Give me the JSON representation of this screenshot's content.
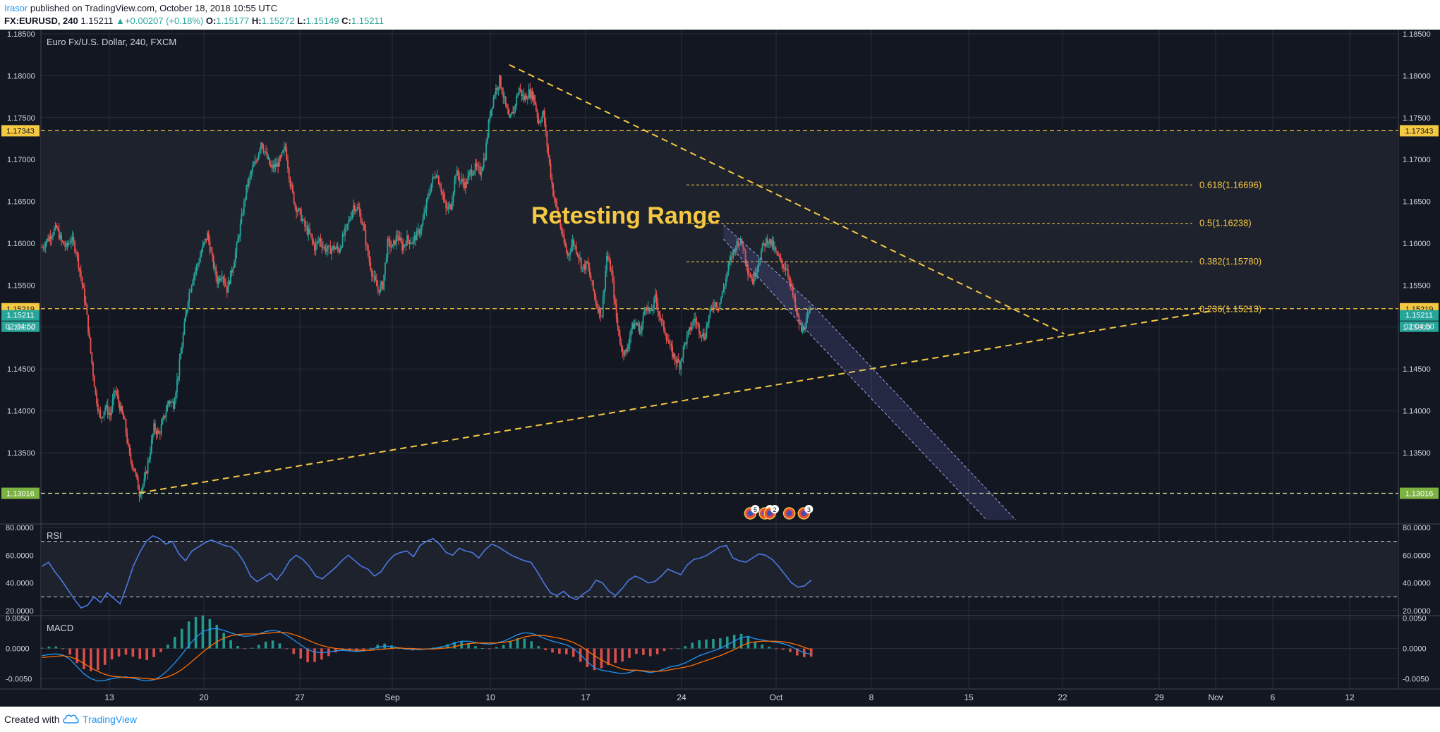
{
  "header": {
    "author": "Irasor",
    "published_text": " published on TradingView.com, October 18, 2018 10:55 UTC",
    "symbol": "FX:EURUSD, 240",
    "last": "1.15211",
    "change_arrow": "▲",
    "change": "+0.00207 (+0.18%)",
    "o_label": "O:",
    "o": "1.15177",
    "h_label": "H:",
    "h": "1.15272",
    "l_label": "L:",
    "l": "1.15149",
    "c_label": "C:",
    "c": "1.15211"
  },
  "footer": {
    "created_with": "Created with",
    "brand": "TradingView"
  },
  "chart_data": [
    {
      "type": "candlestick",
      "title": "Euro Fx/U.S. Dollar, 240, FXCM",
      "annotation": "Retesting Range",
      "ylim": [
        1.1265,
        1.1855
      ],
      "y_ticks": [
        1.185,
        1.18,
        1.175,
        1.17,
        1.165,
        1.16,
        1.155,
        1.15,
        1.145,
        1.14,
        1.135
      ],
      "y_tick_labels": [
        "1.18500",
        "1.18000",
        "1.17500",
        "1.17000",
        "1.16500",
        "1.16000",
        "1.15500",
        "1.15000",
        "1.14500",
        "1.14000",
        "1.13500"
      ],
      "x_tick_labels": [
        "13",
        "20",
        "27",
        "Sep",
        "10",
        "17",
        "24",
        "Oct",
        "8",
        "15",
        "22",
        "29",
        "Nov",
        "6",
        "12"
      ],
      "price_path": [
        [
          0,
          1.1595
        ],
        [
          2,
          1.1612
        ],
        [
          3,
          1.1618
        ],
        [
          4,
          1.1602
        ],
        [
          5,
          1.1595
        ],
        [
          6,
          1.1606
        ],
        [
          7,
          1.1592
        ],
        [
          8,
          1.156
        ],
        [
          9,
          1.1525
        ],
        [
          10,
          1.147
        ],
        [
          11,
          1.142
        ],
        [
          12,
          1.139
        ],
        [
          13,
          1.1405
        ],
        [
          14,
          1.1395
        ],
        [
          15,
          1.1425
        ],
        [
          16,
          1.1405
        ],
        [
          17,
          1.1385
        ],
        [
          18,
          1.1345
        ],
        [
          19,
          1.133
        ],
        [
          20,
          1.1302
        ],
        [
          21,
          1.1315
        ],
        [
          22,
          1.1345
        ],
        [
          23,
          1.138
        ],
        [
          24,
          1.1372
        ],
        [
          25,
          1.139
        ],
        [
          26,
          1.1412
        ],
        [
          27,
          1.1408
        ],
        [
          28,
          1.1445
        ],
        [
          29,
          1.149
        ],
        [
          30,
          1.1535
        ],
        [
          31,
          1.156
        ],
        [
          32,
          1.1575
        ],
        [
          33,
          1.1595
        ],
        [
          34,
          1.161
        ],
        [
          35,
          1.158
        ],
        [
          36,
          1.1555
        ],
        [
          37,
          1.1565
        ],
        [
          38,
          1.1545
        ],
        [
          39,
          1.1568
        ],
        [
          40,
          1.1595
        ],
        [
          41,
          1.163
        ],
        [
          42,
          1.1665
        ],
        [
          43,
          1.1685
        ],
        [
          44,
          1.1698
        ],
        [
          45,
          1.1722
        ],
        [
          46,
          1.1705
        ],
        [
          47,
          1.169
        ],
        [
          48,
          1.1692
        ],
        [
          49,
          1.17
        ],
        [
          50,
          1.1715
        ],
        [
          51,
          1.1672
        ],
        [
          52,
          1.1645
        ],
        [
          53,
          1.1635
        ],
        [
          54,
          1.162
        ],
        [
          55,
          1.161
        ],
        [
          56,
          1.1595
        ],
        [
          57,
          1.1605
        ],
        [
          58,
          1.1594
        ],
        [
          59,
          1.1592
        ],
        [
          60,
          1.1595
        ],
        [
          61,
          1.1592
        ],
        [
          62,
          1.161
        ],
        [
          63,
          1.1625
        ],
        [
          64,
          1.1645
        ],
        [
          65,
          1.164
        ],
        [
          66,
          1.162
        ],
        [
          67,
          1.1585
        ],
        [
          68,
          1.156
        ],
        [
          69,
          1.1545
        ],
        [
          70,
          1.155
        ],
        [
          71,
          1.16
        ],
        [
          72,
          1.1595
        ],
        [
          73,
          1.161
        ],
        [
          74,
          1.1595
        ],
        [
          75,
          1.1605
        ],
        [
          76,
          1.1602
        ],
        [
          77,
          1.161
        ],
        [
          78,
          1.162
        ],
        [
          79,
          1.1648
        ],
        [
          80,
          1.1672
        ],
        [
          81,
          1.1685
        ],
        [
          82,
          1.1665
        ],
        [
          83,
          1.164
        ],
        [
          84,
          1.1645
        ],
        [
          85,
          1.1685
        ],
        [
          86,
          1.1675
        ],
        [
          87,
          1.167
        ],
        [
          88,
          1.1685
        ],
        [
          89,
          1.169
        ],
        [
          90,
          1.1685
        ],
        [
          91,
          1.1705
        ],
        [
          92,
          1.1755
        ],
        [
          93,
          1.178
        ],
        [
          94,
          1.1795
        ],
        [
          95,
          1.177
        ],
        [
          96,
          1.1745
        ],
        [
          97,
          1.1762
        ],
        [
          98,
          1.1785
        ],
        [
          99,
          1.1772
        ],
        [
          100,
          1.178
        ],
        [
          101,
          1.1775
        ],
        [
          102,
          1.1745
        ],
        [
          103,
          1.1755
        ],
        [
          104,
          1.1705
        ],
        [
          105,
          1.166
        ],
        [
          106,
          1.1635
        ],
        [
          107,
          1.1605
        ],
        [
          108,
          1.1585
        ],
        [
          109,
          1.1602
        ],
        [
          110,
          1.159
        ],
        [
          111,
          1.157
        ],
        [
          112,
          1.1575
        ],
        [
          113,
          1.155
        ],
        [
          114,
          1.1525
        ],
        [
          115,
          1.1515
        ],
        [
          116,
          1.1585
        ],
        [
          117,
          1.1565
        ],
        [
          118,
          1.151
        ],
        [
          119,
          1.1475
        ],
        [
          120,
          1.1468
        ],
        [
          121,
          1.1498
        ],
        [
          122,
          1.1505
        ],
        [
          123,
          1.1495
        ],
        [
          124,
          1.1528
        ],
        [
          125,
          1.1515
        ],
        [
          126,
          1.1535
        ],
        [
          127,
          1.151
        ],
        [
          128,
          1.1495
        ],
        [
          129,
          1.1475
        ],
        [
          130,
          1.1462
        ],
        [
          131,
          1.1455
        ],
        [
          132,
          1.148
        ],
        [
          133,
          1.1495
        ],
        [
          134,
          1.151
        ],
        [
          135,
          1.1498
        ],
        [
          136,
          1.1488
        ],
        [
          137,
          1.1512
        ],
        [
          138,
          1.153
        ],
        [
          139,
          1.1525
        ],
        [
          140,
          1.1545
        ],
        [
          141,
          1.1572
        ],
        [
          142,
          1.159
        ],
        [
          143,
          1.1603
        ],
        [
          144,
          1.1598
        ],
        [
          145,
          1.1568
        ],
        [
          146,
          1.1555
        ],
        [
          147,
          1.1575
        ],
        [
          148,
          1.1595
        ],
        [
          149,
          1.1605
        ],
        [
          150,
          1.1598
        ],
        [
          151,
          1.1585
        ],
        [
          152,
          1.1575
        ],
        [
          153,
          1.157
        ],
        [
          154,
          1.1545
        ],
        [
          155,
          1.1515
        ],
        [
          156,
          1.1495
        ],
        [
          157,
          1.1506
        ],
        [
          158,
          1.1521
        ]
      ],
      "horizontal_levels": [
        {
          "price": 1.17343,
          "label": "1.17343",
          "color": "#f5c842"
        },
        {
          "price": 1.15219,
          "label": "1.15219",
          "color": "#f5c842"
        },
        {
          "price": 1.13016,
          "label": "1.13016",
          "color": "#c8e6a0"
        }
      ],
      "last_price_label": "1.15211",
      "countdown": "02:04:50",
      "fibonacci": [
        {
          "ratio": "0.618",
          "price": 1.16696,
          "label": "0.618(1.16696)"
        },
        {
          "ratio": "0.5",
          "price": 1.16238,
          "label": "0.5(1.16238)"
        },
        {
          "ratio": "0.382",
          "price": 1.1578,
          "label": "0.382(1.15780)"
        },
        {
          "ratio": "0.236",
          "price": 1.15213,
          "label": "0.236(1.15213)"
        }
      ],
      "trendlines": [
        {
          "from": {
            "bar": 20,
            "price": 1.1302
          },
          "to": {
            "bar": 240,
            "price": 1.1519
          }
        },
        {
          "from": {
            "bar": 96,
            "price": 1.1813
          },
          "to": {
            "bar": 210,
            "price": 1.1492
          }
        }
      ],
      "projection_channel": {
        "upper": [
          {
            "bar": 140,
            "price": 1.1622
          },
          {
            "bar": 158,
            "price": 1.1528
          },
          {
            "bar": 200,
            "price": 1.127
          }
        ],
        "lower": [
          {
            "bar": 140,
            "price": 1.1605
          },
          {
            "bar": 158,
            "price": 1.149
          },
          {
            "bar": 194,
            "price": 1.127
          }
        ]
      },
      "event_markers": [
        {
          "bar": 145.5,
          "text": "5"
        },
        {
          "bar": 148.5,
          "text": "2"
        },
        {
          "bar": 149.5,
          "text": "2"
        },
        {
          "bar": 153.5,
          "text": ""
        },
        {
          "bar": 156.5,
          "text": "3"
        }
      ]
    },
    {
      "type": "line",
      "title": "RSI",
      "ylim": [
        17,
        82
      ],
      "y_ticks": [
        80,
        60,
        40,
        20
      ],
      "y_tick_labels": [
        "80.0000",
        "60.0000",
        "40.0000",
        "20.0000"
      ],
      "bands": [
        30,
        70
      ],
      "values": [
        52,
        55,
        48,
        42,
        35,
        28,
        22,
        24,
        30,
        26,
        33,
        29,
        25,
        38,
        52,
        62,
        70,
        74,
        72,
        68,
        70,
        61,
        56,
        63,
        66,
        69,
        71,
        69,
        67,
        66,
        62,
        55,
        45,
        41,
        44,
        47,
        42,
        48,
        56,
        60,
        57,
        52,
        45,
        43,
        47,
        51,
        56,
        60,
        56,
        52,
        50,
        45,
        48,
        55,
        60,
        62,
        63,
        59,
        67,
        70,
        72,
        68,
        62,
        60,
        65,
        63,
        62,
        58,
        64,
        68,
        66,
        63,
        60,
        58,
        56,
        55,
        48,
        40,
        33,
        31,
        34,
        30,
        28,
        32,
        35,
        42,
        40,
        34,
        31,
        36,
        42,
        45,
        43,
        40,
        41,
        45,
        50,
        48,
        46,
        53,
        57,
        58,
        60,
        63,
        66,
        67,
        58,
        56,
        55,
        58,
        61,
        60,
        57,
        52,
        46,
        40,
        37,
        38,
        42
      ]
    },
    {
      "type": "line",
      "title": "MACD",
      "ylim": [
        -0.0066,
        0.0052
      ],
      "y_ticks": [
        0.005,
        0,
        -0.005
      ],
      "y_tick_labels": [
        "0.0050",
        "0.0000",
        "-0.0050"
      ],
      "macd": [
        -0.0012,
        -0.001,
        -0.0009,
        -0.0011,
        -0.0018,
        -0.003,
        -0.0042,
        -0.005,
        -0.0054,
        -0.0053,
        -0.005,
        -0.0048,
        -0.0047,
        -0.0049,
        -0.0052,
        -0.0054,
        -0.0052,
        -0.0046,
        -0.0036,
        -0.0024,
        -0.001,
        0.0005,
        0.0018,
        0.0028,
        0.0032,
        0.0033,
        0.003,
        0.0026,
        0.0022,
        0.002,
        0.0021,
        0.0024,
        0.0028,
        0.003,
        0.0028,
        0.0022,
        0.0014,
        0.0006,
        -0.0002,
        -0.0006,
        -0.0007,
        -0.0006,
        -0.0004,
        -0.0003,
        -0.0004,
        -0.0005,
        -0.0004,
        -0.0002,
        0.0002,
        0.0004,
        0.0003,
        0.0001,
        -0.0001,
        -0.0002,
        -0.0002,
        -0.0001,
        0.0,
        0.0002,
        0.0005,
        0.0009,
        0.0012,
        0.0012,
        0.001,
        0.0008,
        0.0007,
        0.0009,
        0.0012,
        0.0017,
        0.0023,
        0.0026,
        0.0025,
        0.0021,
        0.0016,
        0.0012,
        0.0009,
        0.0006,
        0.0,
        -0.001,
        -0.0022,
        -0.0032,
        -0.0036,
        -0.0038,
        -0.004,
        -0.0042,
        -0.004,
        -0.0036,
        -0.0038,
        -0.004,
        -0.0038,
        -0.0034,
        -0.003,
        -0.0028,
        -0.0024,
        -0.0018,
        -0.0012,
        -0.0008,
        -0.0004,
        0.0,
        0.0006,
        0.0012,
        0.0018,
        0.002,
        0.0016,
        0.0014,
        0.0012,
        0.001,
        0.0008,
        0.0004,
        -0.0002,
        -0.0007,
        -0.001
      ],
      "signal": [
        -0.0015,
        -0.0014,
        -0.0013,
        -0.0012,
        -0.0014,
        -0.0018,
        -0.0025,
        -0.0032,
        -0.0038,
        -0.0043,
        -0.0046,
        -0.0047,
        -0.0048,
        -0.0048,
        -0.0049,
        -0.005,
        -0.0051,
        -0.005,
        -0.0047,
        -0.0042,
        -0.0035,
        -0.0026,
        -0.0016,
        -0.0006,
        0.0003,
        0.0011,
        0.0017,
        0.0021,
        0.0023,
        0.0024,
        0.0024,
        0.0024,
        0.0025,
        0.0026,
        0.0027,
        0.0026,
        0.0023,
        0.0019,
        0.0014,
        0.0009,
        0.0005,
        0.0002,
        0.0,
        -0.0001,
        -0.0002,
        -0.0003,
        -0.0003,
        -0.0003,
        -0.0002,
        -0.0001,
        0.0,
        0.0001,
        0.0,
        0.0,
        -0.0001,
        -0.0001,
        -0.0001,
        0.0,
        0.0001,
        0.0003,
        0.0006,
        0.0008,
        0.0009,
        0.0009,
        0.0009,
        0.0009,
        0.001,
        0.0012,
        0.0015,
        0.0019,
        0.0021,
        0.0022,
        0.0021,
        0.0019,
        0.0017,
        0.0014,
        0.001,
        0.0004,
        -0.0004,
        -0.0012,
        -0.0019,
        -0.0025,
        -0.003,
        -0.0034,
        -0.0036,
        -0.0036,
        -0.0037,
        -0.0038,
        -0.0038,
        -0.0037,
        -0.0035,
        -0.0033,
        -0.0031,
        -0.0028,
        -0.0024,
        -0.002,
        -0.0016,
        -0.0012,
        -0.0007,
        -0.0002,
        0.0004,
        0.0009,
        0.0011,
        0.0012,
        0.0012,
        0.0012,
        0.0011,
        0.0009,
        0.0006,
        0.0002,
        -0.0002
      ]
    }
  ],
  "colors": {
    "background": "#131722",
    "range_fill": "#1e222d",
    "up_candle": "#26a69a",
    "down_candle": "#ef5350",
    "grid": "#2a2e39",
    "axis_text": "#d1d4dc",
    "drawing": "#f5c842",
    "rsi_line": "#4b78e2",
    "macd_line": "#2196f3",
    "signal_line": "#ff6d00",
    "last_price": "#26a69a",
    "projection": "#7b7bd6",
    "brand": "#2196f3"
  }
}
